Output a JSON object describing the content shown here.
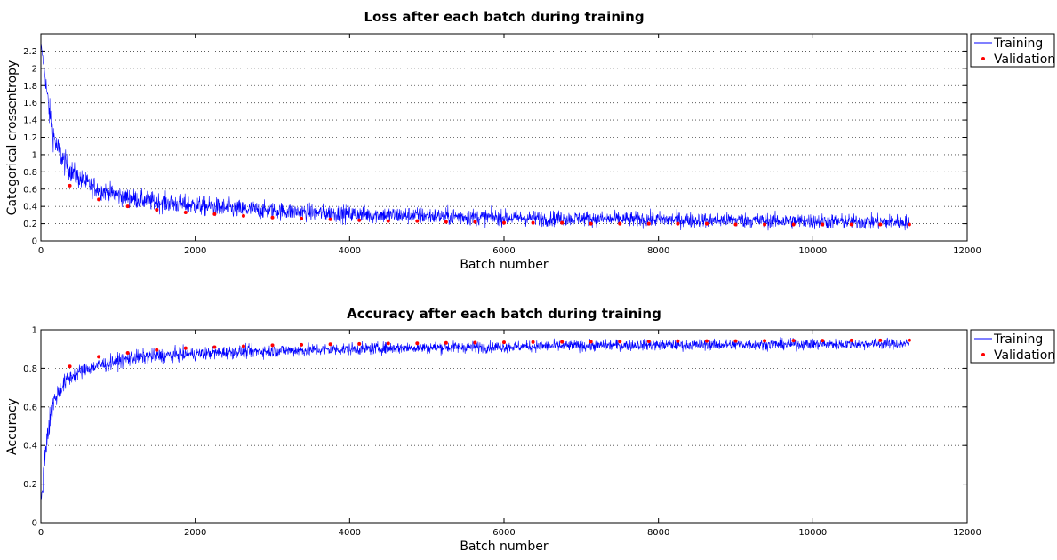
{
  "chart_data": [
    {
      "type": "line",
      "title": "Loss after each batch during training",
      "xlabel": "Batch number",
      "ylabel": "Categorical crossentropy",
      "xlim": [
        0,
        12000
      ],
      "ylim": [
        0,
        2.4
      ],
      "xticks": [
        0,
        2000,
        4000,
        6000,
        8000,
        10000,
        12000
      ],
      "yticks": [
        0,
        0.2,
        0.4,
        0.6,
        0.8,
        1,
        1.2,
        1.4,
        1.6,
        1.8,
        2,
        2.2
      ],
      "grid": "horizontal dotted",
      "legend": "outside top-right",
      "series": [
        {
          "name": "Training",
          "style": "line",
          "color": "#0000ff",
          "x": [
            0,
            50,
            100,
            150,
            200,
            300,
            400,
            500,
            600,
            800,
            1000,
            1200,
            1500,
            2000,
            2500,
            3000,
            3500,
            4000,
            4500,
            5000,
            5500,
            6000,
            6500,
            7000,
            7500,
            8000,
            8500,
            9000,
            9500,
            10000,
            10500,
            11000,
            11250
          ],
          "y": [
            2.3,
            1.95,
            1.55,
            1.28,
            1.1,
            0.92,
            0.8,
            0.72,
            0.66,
            0.58,
            0.53,
            0.49,
            0.45,
            0.41,
            0.37,
            0.35,
            0.33,
            0.31,
            0.3,
            0.29,
            0.28,
            0.27,
            0.26,
            0.26,
            0.25,
            0.25,
            0.24,
            0.24,
            0.23,
            0.23,
            0.22,
            0.22,
            0.22
          ],
          "noise": [
            0.0,
            0.08,
            0.15,
            0.15,
            0.14,
            0.13,
            0.12,
            0.11,
            0.11,
            0.1,
            0.1,
            0.1,
            0.1,
            0.1,
            0.1,
            0.09,
            0.09,
            0.09,
            0.09,
            0.09,
            0.09,
            0.08,
            0.08,
            0.08,
            0.08,
            0.08,
            0.08,
            0.08,
            0.08,
            0.08,
            0.08,
            0.08,
            0.08
          ]
        },
        {
          "name": "Validation",
          "style": "points",
          "color": "#ff0000",
          "x": [
            375,
            750,
            1125,
            1500,
            1875,
            2250,
            2625,
            3000,
            3375,
            3750,
            4125,
            4500,
            4875,
            5250,
            5625,
            6000,
            6375,
            6750,
            7125,
            7500,
            7875,
            8250,
            8625,
            9000,
            9375,
            9750,
            10125,
            10500,
            10875,
            11250
          ],
          "y": [
            0.64,
            0.48,
            0.4,
            0.36,
            0.33,
            0.31,
            0.29,
            0.27,
            0.26,
            0.25,
            0.24,
            0.23,
            0.23,
            0.22,
            0.22,
            0.21,
            0.21,
            0.21,
            0.2,
            0.2,
            0.2,
            0.2,
            0.2,
            0.19,
            0.19,
            0.19,
            0.19,
            0.19,
            0.19,
            0.19
          ]
        }
      ]
    },
    {
      "type": "line",
      "title": "Accuracy after each batch during training",
      "xlabel": "Batch number",
      "ylabel": "Accuracy",
      "xlim": [
        0,
        12000
      ],
      "ylim": [
        0,
        1
      ],
      "xticks": [
        0,
        2000,
        4000,
        6000,
        8000,
        10000,
        12000
      ],
      "yticks": [
        0,
        0.2,
        0.4,
        0.6,
        0.8,
        1
      ],
      "grid": "horizontal dotted",
      "legend": "outside top-right",
      "series": [
        {
          "name": "Training",
          "style": "line",
          "color": "#0000ff",
          "x": [
            0,
            25,
            50,
            100,
            150,
            200,
            300,
            400,
            500,
            600,
            800,
            1000,
            1200,
            1500,
            2000,
            2500,
            3000,
            3500,
            4000,
            4500,
            5000,
            5500,
            6000,
            6500,
            7000,
            7500,
            8000,
            8500,
            9000,
            9500,
            10000,
            10500,
            11000,
            11250
          ],
          "y": [
            0.1,
            0.2,
            0.35,
            0.5,
            0.6,
            0.66,
            0.72,
            0.76,
            0.78,
            0.8,
            0.82,
            0.84,
            0.855,
            0.865,
            0.875,
            0.885,
            0.89,
            0.895,
            0.9,
            0.905,
            0.908,
            0.91,
            0.912,
            0.915,
            0.917,
            0.92,
            0.921,
            0.922,
            0.923,
            0.924,
            0.925,
            0.926,
            0.927,
            0.927
          ],
          "noise": [
            0.0,
            0.05,
            0.06,
            0.07,
            0.06,
            0.05,
            0.04,
            0.04,
            0.035,
            0.035,
            0.035,
            0.035,
            0.035,
            0.035,
            0.03,
            0.03,
            0.03,
            0.03,
            0.028,
            0.028,
            0.027,
            0.027,
            0.026,
            0.026,
            0.026,
            0.025,
            0.025,
            0.025,
            0.025,
            0.025,
            0.025,
            0.024,
            0.024,
            0.024
          ]
        },
        {
          "name": "Validation",
          "style": "points",
          "color": "#ff0000",
          "x": [
            375,
            750,
            1125,
            1500,
            1875,
            2250,
            2625,
            3000,
            3375,
            3750,
            4125,
            4500,
            4875,
            5250,
            5625,
            6000,
            6375,
            6750,
            7125,
            7500,
            7875,
            8250,
            8625,
            9000,
            9375,
            9750,
            10125,
            10500,
            10875,
            11250
          ],
          "y": [
            0.81,
            0.86,
            0.88,
            0.895,
            0.905,
            0.91,
            0.915,
            0.92,
            0.922,
            0.925,
            0.927,
            0.929,
            0.93,
            0.932,
            0.933,
            0.935,
            0.936,
            0.937,
            0.938,
            0.939,
            0.94,
            0.941,
            0.942,
            0.942,
            0.943,
            0.944,
            0.944,
            0.945,
            0.945,
            0.946
          ]
        }
      ]
    }
  ]
}
